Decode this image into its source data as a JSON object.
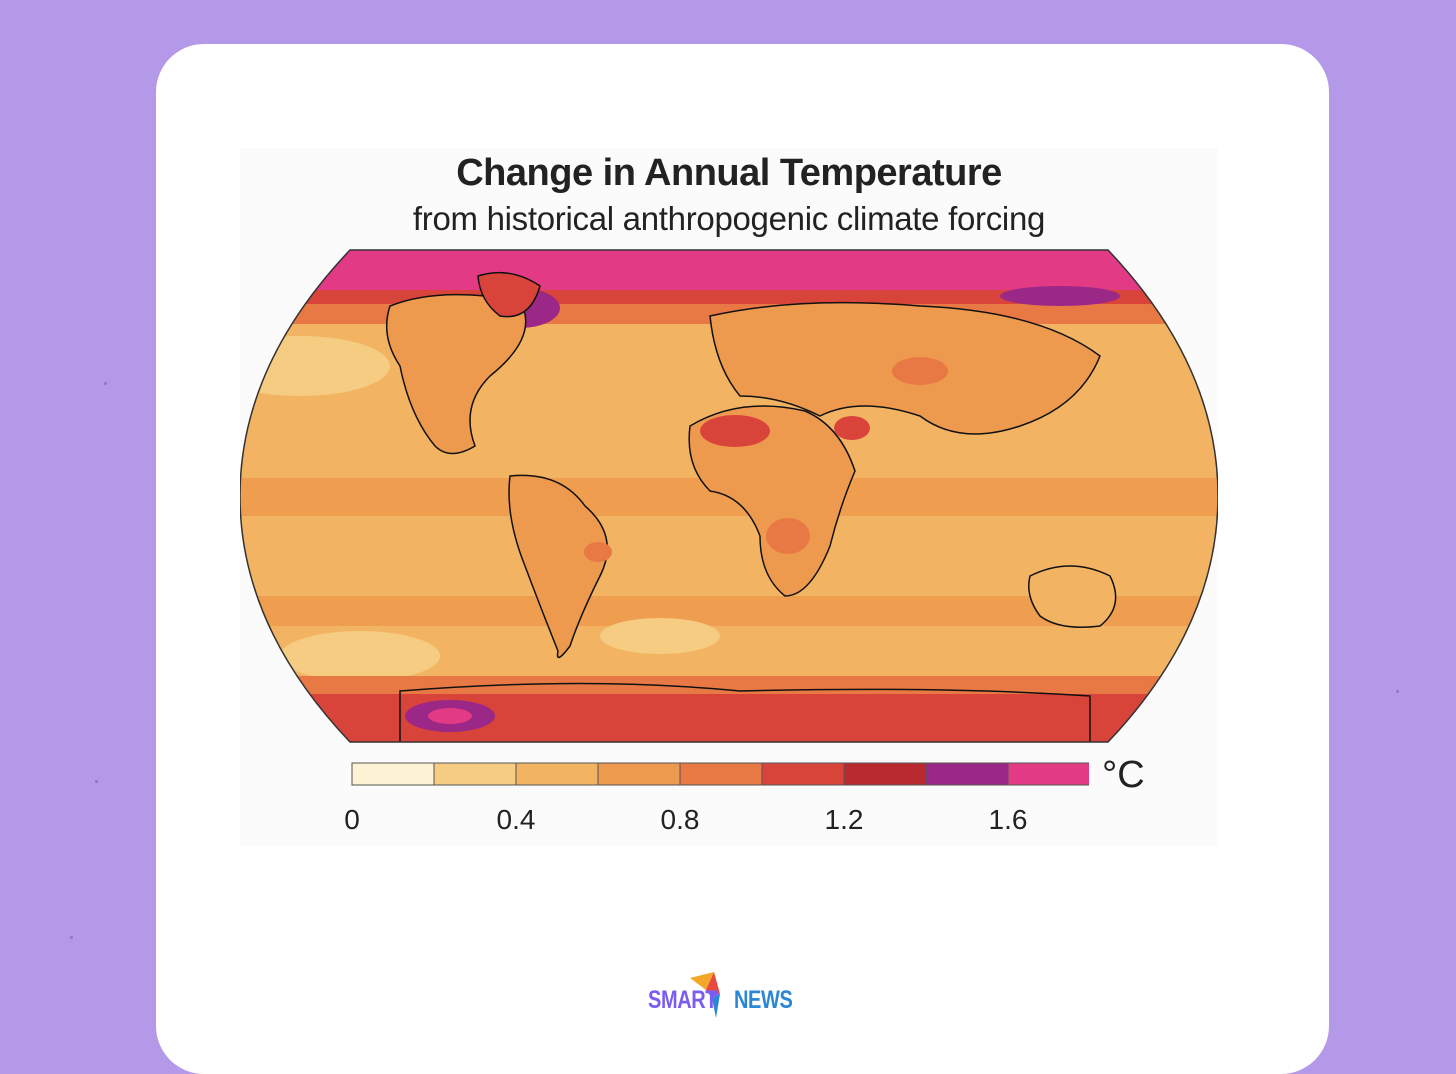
{
  "figure": {
    "title": "Change in Annual Temperature",
    "subtitle": "from historical anthropogenic climate forcing"
  },
  "legend": {
    "unit": "°C",
    "tick_labels": [
      "0",
      "0.4",
      "0.8",
      "1.2",
      "1.6"
    ],
    "tick_values": [
      0,
      0.4,
      0.8,
      1.2,
      1.6
    ],
    "range": [
      0,
      1.8
    ],
    "step": 0.2,
    "bins": [
      {
        "from": 0.0,
        "to": 0.2,
        "color": "#fdf3d4"
      },
      {
        "from": 0.2,
        "to": 0.4,
        "color": "#f6cc82"
      },
      {
        "from": 0.4,
        "to": 0.6,
        "color": "#f2b462"
      },
      {
        "from": 0.6,
        "to": 0.8,
        "color": "#ee9a4e"
      },
      {
        "from": 0.8,
        "to": 1.0,
        "color": "#e87945"
      },
      {
        "from": 1.0,
        "to": 1.2,
        "color": "#d9443a"
      },
      {
        "from": 1.2,
        "to": 1.4,
        "color": "#b82a30"
      },
      {
        "from": 1.4,
        "to": 1.6,
        "color": "#9b2886"
      },
      {
        "from": 1.6,
        "to": 1.8,
        "color": "#e23a84"
      }
    ]
  },
  "logo": {
    "part1": "SMART",
    "part2": "NEWS",
    "color1": "#7b5cf0",
    "color2": "#2b86d6"
  }
}
